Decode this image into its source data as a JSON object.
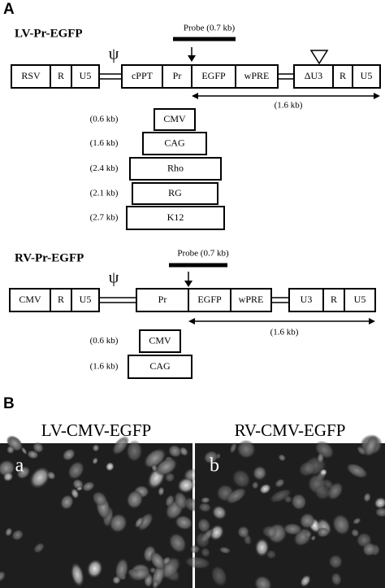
{
  "panel_a": {
    "label": "A",
    "lv": {
      "title": "LV-Pr-EGFP",
      "probe": "Probe (0.7 kb)",
      "psi": "ψ",
      "elements": [
        "RSV",
        "R",
        "U5",
        "cPPT",
        "Pr",
        "EGFP",
        "wPRE",
        "ΔU3",
        "R",
        "U5"
      ],
      "span": "(1.6 kb)",
      "promoters": [
        {
          "size": "(0.6 kb)",
          "name": "CMV"
        },
        {
          "size": "(1.6 kb)",
          "name": "CAG"
        },
        {
          "size": "(2.4 kb)",
          "name": "Rho"
        },
        {
          "size": "(2.1 kb)",
          "name": "RG"
        },
        {
          "size": "(2.7 kb)",
          "name": "K12"
        }
      ]
    },
    "rv": {
      "title": "RV-Pr-EGFP",
      "probe": "Probe (0.7 kb)",
      "psi": "ψ",
      "elements": [
        "CMV",
        "R",
        "U5",
        "Pr",
        "EGFP",
        "wPRE",
        "U3",
        "R",
        "U5"
      ],
      "span": "(1.6 kb)",
      "promoters": [
        {
          "size": "(0.6 kb)",
          "name": "CMV"
        },
        {
          "size": "(1.6 kb)",
          "name": "CAG"
        }
      ]
    }
  },
  "panel_b": {
    "label": "B",
    "images": [
      {
        "title": "LV-CMV-EGFP",
        "letter": "a"
      },
      {
        "title": "RV-CMV-EGFP",
        "letter": "b"
      }
    ]
  }
}
